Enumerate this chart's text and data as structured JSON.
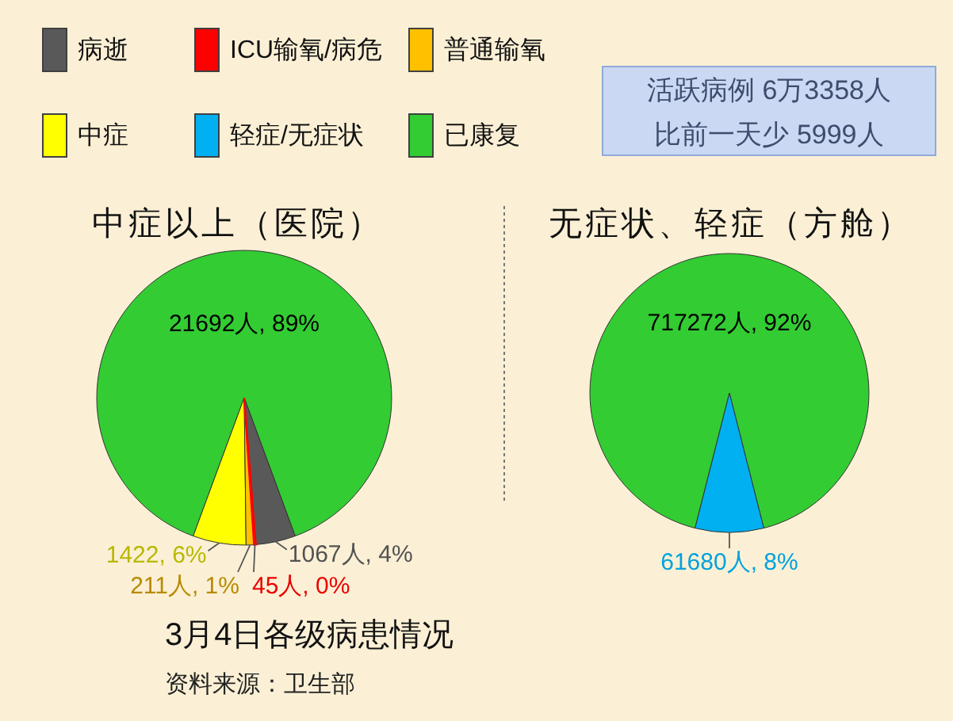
{
  "chart_data": [
    {
      "type": "pie",
      "title": "中症以上（医院）",
      "categories": [
        "病逝",
        "ICU输氧/病危",
        "普通输氧",
        "中症",
        "已康复"
      ],
      "values": [
        1067,
        45,
        211,
        1422,
        21692
      ],
      "colors": [
        "#595959",
        "#ff0000",
        "#ffc000",
        "#ffff00",
        "#33cc33"
      ],
      "value_labels": [
        "1067人, 4%",
        "45人, 0%",
        "211人, 1%",
        "1422, 6%",
        "21692人, 89%"
      ],
      "legend": "top",
      "annotations": [
        "3月4日各级病患情况",
        "资料来源：卫生部"
      ]
    },
    {
      "type": "pie",
      "title": "无症状、轻症（方舱）",
      "categories": [
        "轻症/无症状",
        null
      ],
      "values": [
        61680,
        717272
      ],
      "colors": [
        "#00b0f0",
        "#33cc33"
      ],
      "value_labels": [
        "61680人, 8%",
        "717272人, 92%"
      ],
      "legend": "top",
      "annotations": [
        "活跃病例 6万3358人",
        "比前一天少 5999人"
      ]
    }
  ]
}
